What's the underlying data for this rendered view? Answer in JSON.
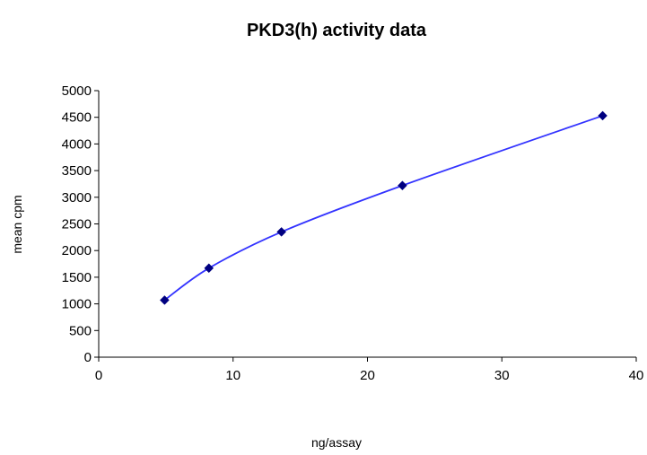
{
  "chart_data": {
    "type": "scatter",
    "title": "PKD3(h) activity data",
    "xlabel": "ng/assay",
    "ylabel": "mean cpm",
    "xlim": [
      0,
      40
    ],
    "ylim": [
      0,
      5000
    ],
    "x_ticks": [
      0,
      10,
      20,
      30,
      40
    ],
    "y_ticks": [
      0,
      500,
      1000,
      1500,
      2000,
      2500,
      3000,
      3500,
      4000,
      4500,
      5000
    ],
    "grid": false,
    "legend": "none",
    "smoothed_line": true,
    "series": [
      {
        "marker": "diamond",
        "color": "#000080",
        "line_color": "#3333ff",
        "points": [
          {
            "x": 4.9,
            "y": 1070
          },
          {
            "x": 8.2,
            "y": 1670
          },
          {
            "x": 13.6,
            "y": 2350
          },
          {
            "x": 22.6,
            "y": 3220
          },
          {
            "x": 37.5,
            "y": 4530
          }
        ]
      }
    ]
  }
}
